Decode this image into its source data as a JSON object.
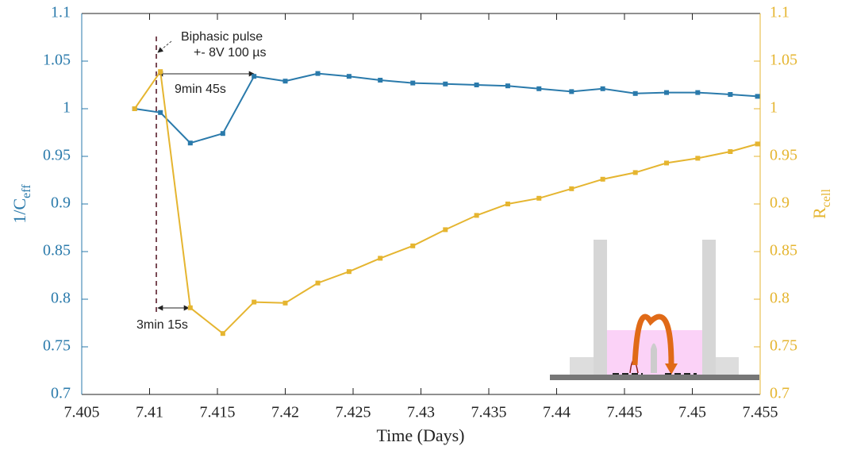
{
  "chart_data": {
    "type": "line",
    "xlabel": "Time (Days)",
    "ylabel": "1/C",
    "ylabel_sub": "eff",
    "y2label": "R",
    "y2label_sub": "cell",
    "annotations": [
      "Biphasic pulse",
      "+- 8V 100 µs",
      "9min 45s",
      "3min 15s"
    ],
    "x": [
      7.4089,
      7.4108,
      7.413,
      7.4154,
      7.4177,
      7.42,
      7.4224,
      7.4247,
      7.427,
      7.4294,
      7.4318,
      7.4341,
      7.4364,
      7.4387,
      7.4411,
      7.4434,
      7.4458,
      7.4481,
      7.4504,
      7.4528,
      7.4548
    ],
    "series": [
      {
        "name": "1/Ceff",
        "color": "#2a7aab",
        "axis": "y",
        "values": [
          1.0,
          0.996,
          0.964,
          0.974,
          1.034,
          1.029,
          1.037,
          1.034,
          1.03,
          1.027,
          1.026,
          1.025,
          1.024,
          1.021,
          1.018,
          1.021,
          1.016,
          1.017,
          1.017,
          1.015,
          1.013
        ]
      },
      {
        "name": "Rcell",
        "color": "#e5b530",
        "axis": "y2",
        "values": [
          1.0,
          1.039,
          0.791,
          0.764,
          0.797,
          0.796,
          0.817,
          0.829,
          0.843,
          0.856,
          0.873,
          0.888,
          0.9,
          0.906,
          0.916,
          0.926,
          0.933,
          0.943,
          0.948,
          0.955,
          0.963
        ]
      }
    ],
    "xlim": [
      7.405,
      7.455
    ],
    "xticks": [
      7.405,
      7.41,
      7.415,
      7.42,
      7.425,
      7.43,
      7.435,
      7.44,
      7.445,
      7.45,
      7.455
    ],
    "ylim": [
      0.7,
      1.1
    ],
    "yticks": [
      0.7,
      0.75,
      0.8,
      0.85,
      0.9,
      0.95,
      1,
      1.05,
      1.1
    ],
    "y2lim": [
      0.7,
      1.1
    ],
    "y2ticks": [
      0.7,
      0.75,
      0.8,
      0.85,
      0.9,
      0.95,
      1,
      1.05,
      1.1
    ]
  }
}
